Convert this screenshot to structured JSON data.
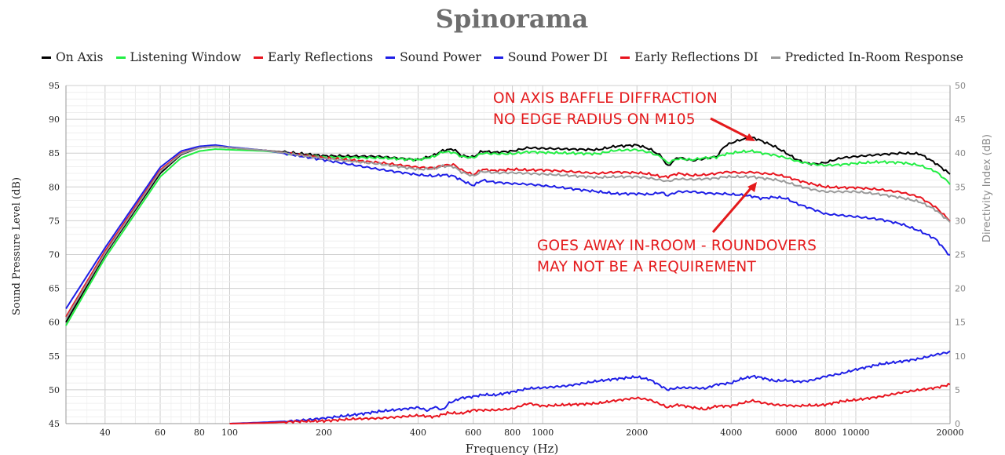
{
  "chart_data": {
    "type": "line",
    "title": "Spinorama",
    "xlabel": "Frequency (Hz)",
    "ylabel": "Sound Pressure Level (dB)",
    "y2label": "Directivity Index (dB)",
    "x_scale": "log",
    "xlim": [
      30,
      20000
    ],
    "ylim": [
      45,
      95
    ],
    "y2lim": [
      0,
      50
    ],
    "x_ticks": [
      "40",
      "60",
      "80",
      "100",
      "200",
      "400",
      "600",
      "800",
      "1000",
      "2000",
      "4000",
      "6000",
      "8000",
      "10000",
      "20000"
    ],
    "y_ticks": [
      "45",
      "50",
      "55",
      "60",
      "65",
      "70",
      "75",
      "80",
      "85",
      "90",
      "95"
    ],
    "y2_ticks": [
      "0",
      "5",
      "10",
      "15",
      "20",
      "25",
      "30",
      "35",
      "40",
      "45",
      "50"
    ],
    "grid": true,
    "legend_position": "top",
    "series": [
      {
        "name": "On Axis",
        "color": "#000000",
        "axis": "left",
        "x": [
          30,
          40,
          60,
          70,
          80,
          90,
          100,
          130,
          200,
          300,
          400,
          450,
          480,
          520,
          550,
          600,
          640,
          700,
          800,
          900,
          1000,
          1200,
          1500,
          1700,
          2000,
          2200,
          2400,
          2500,
          2700,
          3000,
          3300,
          3600,
          3800,
          4000,
          4300,
          4700,
          5000,
          5500,
          6000,
          6500,
          7000,
          7500,
          8000,
          9000,
          10000,
          12000,
          14000,
          16000,
          18000,
          20000
        ],
        "y": [
          60,
          70,
          82,
          84.8,
          85.8,
          86,
          85.8,
          85.4,
          84.6,
          84.5,
          84,
          84.7,
          85.4,
          85.6,
          84.6,
          84.4,
          85.3,
          85.1,
          85.3,
          85.8,
          85.7,
          85.6,
          85.5,
          86,
          86.2,
          85.6,
          84.5,
          83,
          84.4,
          83.9,
          84.2,
          84.5,
          86,
          86.5,
          87,
          87.3,
          86.8,
          86,
          85,
          84,
          83.5,
          83.4,
          83.6,
          84.3,
          84.5,
          84.8,
          85,
          84.9,
          83.5,
          81.9
        ]
      },
      {
        "name": "Listening Window",
        "color": "#22ee44",
        "axis": "left",
        "x": [
          30,
          40,
          60,
          70,
          80,
          90,
          100,
          130,
          200,
          300,
          400,
          450,
          480,
          520,
          550,
          600,
          640,
          700,
          800,
          900,
          1000,
          1200,
          1500,
          1700,
          2000,
          2200,
          2400,
          2500,
          2700,
          3000,
          3300,
          3600,
          3800,
          4000,
          4300,
          4700,
          5000,
          5500,
          6000,
          6500,
          7000,
          7500,
          8000,
          9000,
          10000,
          12000,
          14000,
          16000,
          18000,
          20000
        ],
        "y": [
          59.5,
          69.5,
          81.5,
          84.3,
          85.3,
          85.6,
          85.5,
          85.3,
          84.4,
          84.3,
          84,
          84.5,
          85.2,
          85.1,
          84.5,
          84.3,
          85,
          84.9,
          84.9,
          85.2,
          85.1,
          85,
          84.9,
          85.4,
          85.5,
          85.1,
          84.4,
          83.5,
          84.2,
          84,
          84.3,
          84.4,
          84.8,
          85,
          85.2,
          85.3,
          85,
          84.7,
          84.3,
          83.8,
          83.5,
          83.3,
          83.2,
          83.3,
          83.5,
          83.7,
          83.6,
          83.2,
          82.3,
          80.5
        ]
      },
      {
        "name": "Early Reflections",
        "color": "#e8141e",
        "axis": "left",
        "x": [
          30,
          40,
          60,
          70,
          80,
          90,
          100,
          130,
          200,
          300,
          400,
          450,
          480,
          520,
          550,
          600,
          640,
          700,
          800,
          900,
          1000,
          1200,
          1500,
          1700,
          2000,
          2200,
          2400,
          2500,
          2700,
          3000,
          3300,
          3600,
          3800,
          4000,
          4300,
          4700,
          5000,
          5500,
          6000,
          6500,
          7000,
          7500,
          8000,
          9000,
          10000,
          12000,
          14000,
          16000,
          18000,
          20000
        ],
        "y": [
          60.8,
          70.5,
          82.5,
          85,
          85.8,
          86,
          85.8,
          85.4,
          84.3,
          83.6,
          82.9,
          82.8,
          83.2,
          83.3,
          82.5,
          81.8,
          82.6,
          82.4,
          82.6,
          82.5,
          82.5,
          82.3,
          82,
          82.2,
          82.1,
          81.9,
          81.5,
          81.5,
          82,
          81.7,
          81.8,
          82,
          82.2,
          82.2,
          82.1,
          82.2,
          82,
          81.9,
          81.5,
          81,
          80.6,
          80.3,
          80,
          79.9,
          79.9,
          79.6,
          79.2,
          78.5,
          77,
          75
        ]
      },
      {
        "name": "Sound Power",
        "color": "#1e1ee6",
        "axis": "left",
        "x": [
          30,
          40,
          60,
          70,
          80,
          90,
          100,
          130,
          200,
          300,
          400,
          450,
          480,
          520,
          550,
          600,
          640,
          700,
          800,
          900,
          1000,
          1200,
          1500,
          1700,
          2000,
          2200,
          2400,
          2500,
          2700,
          3000,
          3300,
          3600,
          3800,
          4000,
          4300,
          4700,
          5000,
          5500,
          6000,
          6500,
          7000,
          7500,
          8000,
          9000,
          10000,
          12000,
          14000,
          16000,
          18000,
          20000
        ],
        "y": [
          62,
          71,
          82.9,
          85.3,
          86,
          86.2,
          85.9,
          85.4,
          84,
          82.6,
          81.8,
          81.6,
          81.8,
          81.6,
          81,
          80.2,
          81,
          80.7,
          80.5,
          80.4,
          80.2,
          79.8,
          79.3,
          79,
          79,
          78.9,
          79.2,
          78.7,
          79.3,
          79.3,
          79.1,
          79,
          79,
          78.9,
          78.8,
          78.6,
          78.3,
          78.5,
          78.3,
          77.5,
          77,
          76.5,
          76,
          75.8,
          75.6,
          75.2,
          74.5,
          73.5,
          72.3,
          69.8
        ]
      },
      {
        "name": "Sound Power DI",
        "color": "#1e1ee6",
        "axis": "right",
        "x": [
          100,
          130,
          160,
          180,
          200,
          250,
          300,
          350,
          400,
          430,
          450,
          480,
          500,
          550,
          600,
          650,
          700,
          800,
          900,
          1000,
          1200,
          1500,
          1700,
          2000,
          2200,
          2400,
          2500,
          2700,
          3000,
          3300,
          3600,
          4000,
          4300,
          4700,
          5000,
          5500,
          6000,
          6500,
          7000,
          7500,
          8000,
          9000,
          10000,
          12000,
          14000,
          16000,
          18000,
          20000
        ],
        "y": [
          0,
          0.2,
          0.4,
          0.6,
          0.8,
          1.3,
          1.8,
          2.1,
          2.4,
          1.9,
          2.5,
          2,
          3,
          3.8,
          4,
          4.3,
          4.2,
          4.7,
          5.2,
          5.3,
          5.6,
          6.3,
          6.6,
          6.9,
          6.5,
          5.5,
          5,
          5.3,
          5.3,
          5.2,
          5.8,
          6,
          6.6,
          7,
          6.8,
          6.3,
          6.4,
          6.2,
          6.3,
          6.6,
          7,
          7.4,
          8,
          8.8,
          9.2,
          9.6,
          10.2,
          10.6
        ]
      },
      {
        "name": "Early Reflections DI",
        "color": "#e8141e",
        "axis": "right",
        "x": [
          100,
          130,
          160,
          200,
          250,
          300,
          350,
          400,
          450,
          500,
          550,
          600,
          700,
          800,
          900,
          1000,
          1200,
          1500,
          1700,
          2000,
          2200,
          2400,
          2500,
          2700,
          3000,
          3300,
          3600,
          4000,
          4300,
          4700,
          5000,
          5500,
          6000,
          6500,
          7000,
          7500,
          8000,
          9000,
          10000,
          12000,
          14000,
          16000,
          18000,
          20000
        ],
        "y": [
          0,
          0.1,
          0.3,
          0.4,
          0.7,
          0.8,
          1,
          1.2,
          1,
          1.6,
          1.5,
          2,
          2,
          2.2,
          3,
          2.6,
          2.8,
          3,
          3.4,
          3.8,
          3.5,
          2.8,
          2.4,
          2.8,
          2.4,
          2.1,
          2.6,
          2.6,
          3,
          3.4,
          3.1,
          2.8,
          2.7,
          2.6,
          2.7,
          2.7,
          2.8,
          3.3,
          3.5,
          4,
          4.6,
          5,
          5.3,
          5.8
        ]
      },
      {
        "name": "Predicted In-Room Response",
        "color": "#9a9a9a",
        "axis": "left",
        "x": [
          30,
          40,
          60,
          70,
          80,
          90,
          100,
          130,
          200,
          300,
          400,
          450,
          480,
          520,
          550,
          600,
          640,
          700,
          800,
          900,
          1000,
          1200,
          1500,
          1700,
          2000,
          2200,
          2400,
          2500,
          2700,
          3000,
          3300,
          3600,
          3800,
          4000,
          4300,
          4700,
          5000,
          5500,
          6000,
          6500,
          7000,
          7500,
          8000,
          9000,
          10000,
          12000,
          14000,
          16000,
          18000,
          20000
        ],
        "y": [
          60.5,
          70.2,
          82.3,
          84.9,
          85.8,
          86,
          85.8,
          85.4,
          84.2,
          83.4,
          82.6,
          82.7,
          83.1,
          83,
          82.2,
          81.6,
          82.3,
          82.1,
          82.1,
          82,
          81.9,
          81.7,
          81.4,
          81.5,
          81.5,
          81.3,
          81,
          80.8,
          81.2,
          81.1,
          81.2,
          81.3,
          81.5,
          81.5,
          81.5,
          81.5,
          81.3,
          81.1,
          80.7,
          80.2,
          79.8,
          79.5,
          79.3,
          79.3,
          79.3,
          78.9,
          78.4,
          77.8,
          76.6,
          74.8
        ]
      }
    ],
    "annotations": [
      {
        "text": "ON AXIS BAFFLE DIFFRACTION\nNO EDGE RADIUS ON M105",
        "color": "#e41a1c"
      },
      {
        "text": "GOES AWAY IN-ROOM - ROUNDOVERS\nMAY NOT BE A REQUIREMENT",
        "color": "#e41a1c"
      }
    ]
  }
}
